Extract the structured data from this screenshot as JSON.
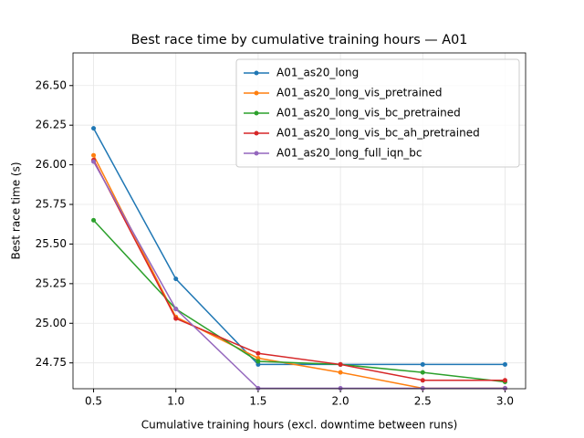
{
  "chart_data": {
    "type": "line",
    "title": "Best race time by cumulative training hours — A01",
    "x_label": "Cumulative training hours (excl. downtime between runs)",
    "y_label": "Best race time (s)",
    "x": [
      0.5,
      1.0,
      1.5,
      2.0,
      2.5,
      3.0
    ],
    "series": [
      {
        "name": "A01_as20_long",
        "color": "#1f77b4",
        "values": [
          26.23,
          25.28,
          24.74,
          24.74,
          24.74,
          24.74
        ]
      },
      {
        "name": "A01_as20_long_vis_pretrained",
        "color": "#ff7f0e",
        "values": [
          26.06,
          25.04,
          24.78,
          24.69,
          24.59,
          24.59
        ]
      },
      {
        "name": "A01_as20_long_vis_bc_pretrained",
        "color": "#2ca02c",
        "values": [
          25.65,
          25.09,
          24.76,
          24.74,
          24.69,
          24.63
        ]
      },
      {
        "name": "A01_as20_long_vis_bc_ah_pretrained",
        "color": "#d62728",
        "values": [
          26.03,
          25.03,
          24.81,
          24.74,
          24.64,
          24.64
        ]
      },
      {
        "name": "A01_as20_long_full_iqn_bc",
        "color": "#9467bd",
        "values": [
          26.02,
          25.09,
          24.59,
          24.59,
          24.59,
          24.59
        ]
      }
    ],
    "xlim": [
      0.375,
      3.125
    ],
    "ylim": [
      24.587,
      26.706
    ],
    "xticks": [
      0.5,
      {
        "value": 1.0,
        "label": "1.0"
      },
      1.5,
      {
        "value": 2.0,
        "label": "2.0"
      },
      2.5,
      {
        "value": 3.0,
        "label": "3.0"
      }
    ],
    "yticks": [
      24.75,
      {
        "value": 25.0,
        "label": "25.00"
      },
      25.25,
      {
        "value": 25.5,
        "label": "25.50"
      },
      25.75,
      {
        "value": 26.0,
        "label": "26.00"
      },
      26.25,
      {
        "value": 26.5,
        "label": "26.50"
      }
    ],
    "grid": true,
    "legend": "upper-right"
  }
}
